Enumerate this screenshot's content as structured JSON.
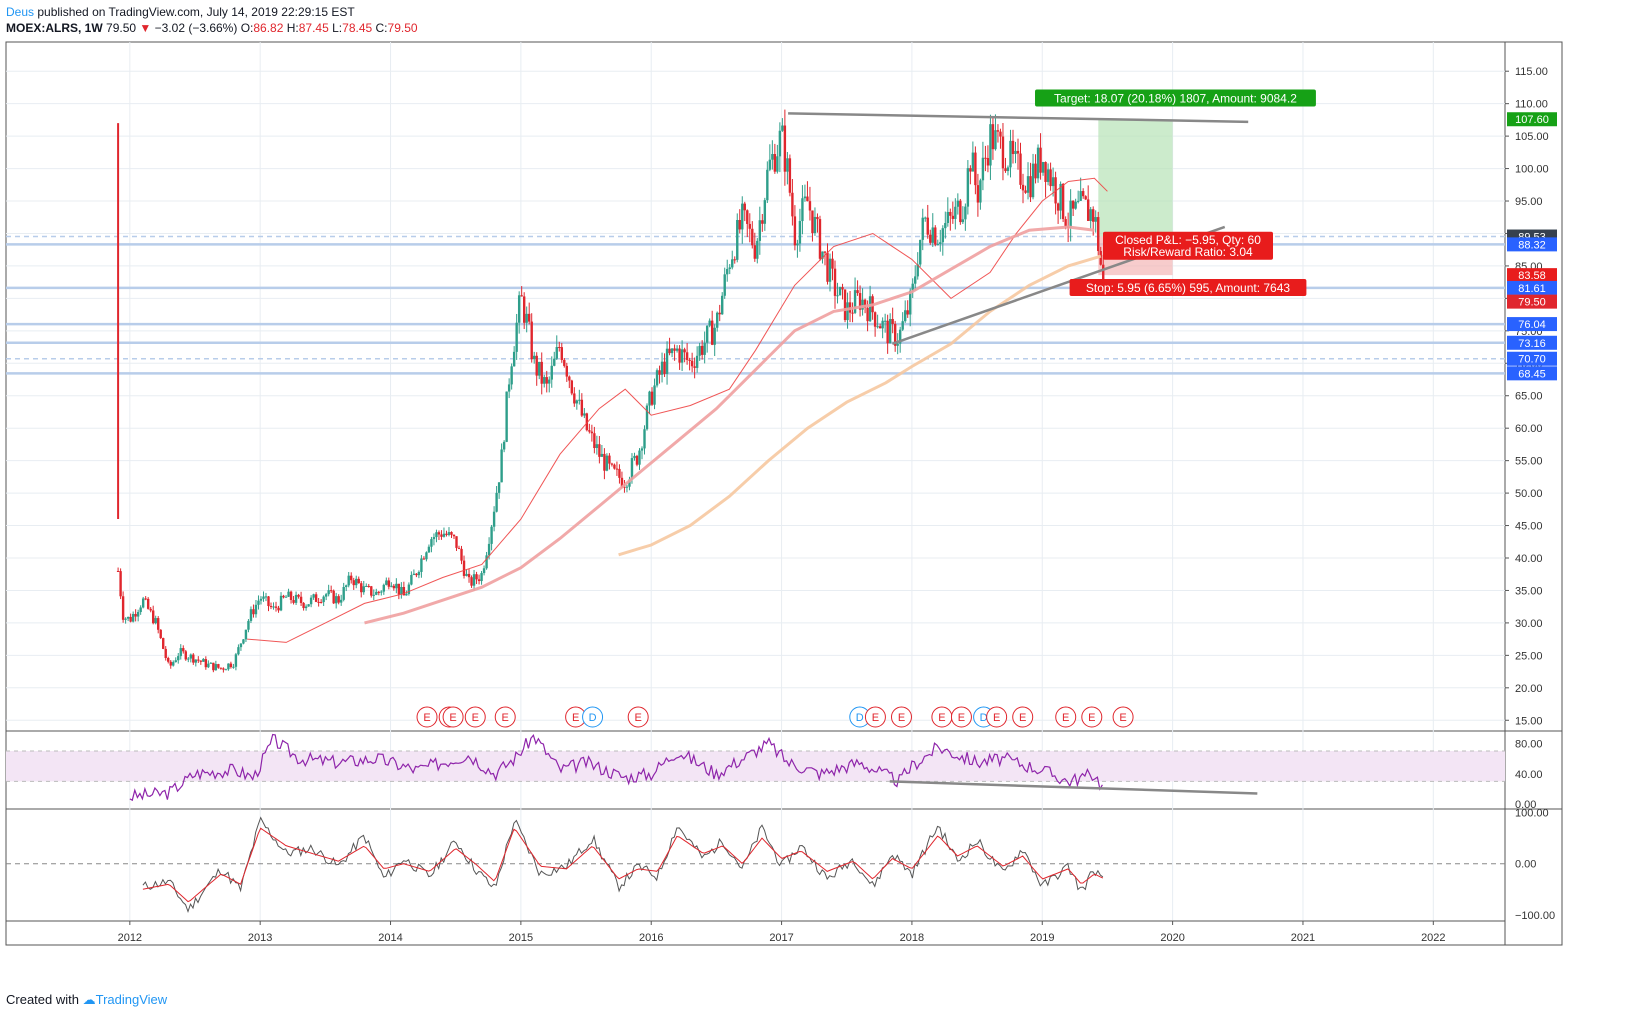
{
  "header": {
    "published_by": "Deus",
    "published_text": "published on TradingView.com, July 14, 2019 22:29:15 EST",
    "ticker": "MOEX:ALRS, 1W",
    "last": "79.50",
    "change": "−3.02 (−3.66%)",
    "o_label": "O:",
    "o_val": "86.82",
    "h_label": "H:",
    "h_val": "87.45",
    "l_label": "L:",
    "l_val": "78.45",
    "c_label": "C:",
    "c_val": "79.50"
  },
  "footer": {
    "created_with": "Created with",
    "brand": "TradingView"
  },
  "colors": {
    "up": "#2e9e8a",
    "down": "#e0262d",
    "ma_fast": "#ee4444",
    "ma_mid": "#f0a0a0",
    "ma_slow": "#f6c8a0",
    "rsi": "#8e24aa",
    "grid": "#e8edf2",
    "hline": "#b8cdea",
    "target": "#16a116",
    "stop": "#e81c1c"
  },
  "chart_data": [
    {
      "type": "candlestick",
      "title": "MOEX:ALRS, 1W",
      "x_ticks": [
        "2012",
        "2013",
        "2014",
        "2015",
        "2016",
        "2017",
        "2018",
        "2019",
        "2020",
        "2021",
        "2022"
      ],
      "x_tick_values": [
        2012,
        2013,
        2014,
        2015,
        2016,
        2017,
        2018,
        2019,
        2020,
        2021,
        2022
      ],
      "xlim": [
        2011.05,
        2022.55
      ],
      "y_ticks": [
        "115.00",
        "110.00",
        "105.00",
        "100.00",
        "95.00",
        "90.00",
        "85.00",
        "80.00",
        "75.00",
        "70.00",
        "65.00",
        "60.00",
        "55.00",
        "50.00",
        "45.00",
        "40.00",
        "35.00",
        "30.00",
        "25.00",
        "20.00",
        "15.00"
      ],
      "y_tick_values": [
        115,
        110,
        105,
        100,
        95,
        90,
        85,
        80,
        75,
        70,
        65,
        60,
        55,
        50,
        45,
        40,
        35,
        30,
        25,
        20,
        15
      ],
      "ylim": [
        13.5,
        119.5
      ],
      "close_series": {
        "x": [
          2011.91,
          2011.95,
          2012.0,
          2012.1,
          2012.2,
          2012.3,
          2012.38,
          2012.5,
          2012.6,
          2012.7,
          2012.8,
          2012.92,
          2013.0,
          2013.1,
          2013.2,
          2013.35,
          2013.5,
          2013.6,
          2013.7,
          2013.8,
          2013.9,
          2014.0,
          2014.1,
          2014.2,
          2014.3,
          2014.4,
          2014.5,
          2014.6,
          2014.7,
          2014.78,
          2014.85,
          2014.92,
          2015.0,
          2015.05,
          2015.1,
          2015.2,
          2015.3,
          2015.4,
          2015.5,
          2015.6,
          2015.7,
          2015.8,
          2015.9,
          2016.0,
          2016.1,
          2016.2,
          2016.3,
          2016.4,
          2016.5,
          2016.6,
          2016.7,
          2016.8,
          2016.9,
          2017.0,
          2017.05,
          2017.1,
          2017.2,
          2017.3,
          2017.4,
          2017.5,
          2017.6,
          2017.7,
          2017.8,
          2017.9,
          2018.0,
          2018.05,
          2018.1,
          2018.2,
          2018.3,
          2018.4,
          2018.45,
          2018.5,
          2018.6,
          2018.7,
          2018.8,
          2018.9,
          2019.0,
          2019.1,
          2019.2,
          2019.3,
          2019.4,
          2019.45,
          2019.48
        ],
        "y": [
          38.0,
          31.0,
          30.5,
          33.5,
          30.0,
          23.0,
          25.5,
          24.5,
          23.5,
          23.0,
          24.0,
          31.0,
          34.0,
          32.0,
          34.0,
          33.0,
          34.5,
          33.5,
          37.0,
          35.0,
          34.5,
          37.0,
          34.0,
          38.0,
          43.0,
          44.0,
          42.5,
          36.0,
          37.5,
          46.0,
          55.0,
          70.0,
          80.0,
          76.0,
          70.0,
          66.0,
          73.0,
          66.0,
          60.0,
          56.0,
          53.0,
          52.0,
          56.0,
          65.0,
          70.0,
          72.0,
          70.0,
          73.0,
          76.0,
          86.0,
          92.0,
          88.0,
          100.0,
          105.0,
          99.0,
          90.0,
          95.0,
          88.0,
          82.0,
          78.0,
          80.0,
          78.0,
          75.0,
          74.0,
          80.0,
          88.0,
          92.0,
          90.0,
          92.0,
          95.0,
          102.0,
          96.0,
          105.0,
          103.0,
          100.0,
          98.0,
          102.0,
          97.0,
          92.0,
          94.0,
          93.0,
          85.0,
          79.5
        ]
      },
      "moving_averages": [
        {
          "x": [
            2012.9,
            2013.2,
            2013.5,
            2013.8,
            2014.1,
            2014.4,
            2014.7,
            2015.0,
            2015.3,
            2015.6,
            2015.8,
            2016.0,
            2016.3,
            2016.6,
            2016.8,
            2017.1,
            2017.4,
            2017.7,
            2018.0,
            2018.3,
            2018.6,
            2018.8,
            2019.0,
            2019.2,
            2019.4,
            2019.5
          ],
          "y": [
            27.5,
            27.0,
            30.0,
            33.0,
            34.5,
            37.0,
            39.0,
            46.0,
            56.0,
            63.0,
            66.0,
            62.0,
            63.5,
            66.0,
            72.0,
            82.0,
            88.0,
            90.0,
            86.0,
            80.0,
            84.0,
            90.0,
            95.0,
            98.0,
            98.5,
            96.5
          ]
        },
        {
          "x": [
            2013.8,
            2014.1,
            2014.4,
            2014.7,
            2015.0,
            2015.3,
            2015.6,
            2015.9,
            2016.2,
            2016.5,
            2016.8,
            2017.1,
            2017.4,
            2017.7,
            2018.0,
            2018.3,
            2018.6,
            2018.9,
            2019.2,
            2019.4
          ],
          "y": [
            30.0,
            31.5,
            33.5,
            35.5,
            38.5,
            43.0,
            48.0,
            53.0,
            58.0,
            63.0,
            69.0,
            75.0,
            78.0,
            79.0,
            81.0,
            84.5,
            88.0,
            90.5,
            91.0,
            90.5
          ]
        },
        {
          "x": [
            2015.75,
            2016.0,
            2016.3,
            2016.6,
            2016.9,
            2017.2,
            2017.5,
            2017.8,
            2018.0,
            2018.3,
            2018.6,
            2018.9,
            2019.2,
            2019.45
          ],
          "y": [
            40.5,
            42.0,
            45.0,
            49.5,
            55.0,
            60.0,
            64.0,
            67.0,
            69.5,
            73.0,
            78.0,
            82.0,
            85.0,
            86.5
          ]
        }
      ],
      "trendlines": [
        {
          "x": [
            2017.05,
            2020.58
          ],
          "y": [
            108.5,
            107.2
          ]
        },
        {
          "x": [
            2017.85,
            2020.4
          ],
          "y": [
            73.0,
            91.0
          ]
        }
      ],
      "price_lines": [
        89.53,
        88.32,
        81.61,
        76.04,
        73.16,
        70.7,
        68.45
      ],
      "price_labels": [
        {
          "text": "107.60",
          "value": 107.6,
          "color": "#16a116"
        },
        {
          "text": "89.53",
          "value": 89.53,
          "color": "#37414f"
        },
        {
          "text": "88.32",
          "value": 88.32,
          "color": "#2962ff"
        },
        {
          "text": "83.58",
          "value": 83.58,
          "color": "#e81c1c"
        },
        {
          "text": "81.61",
          "value": 81.61,
          "color": "#2962ff"
        },
        {
          "text": "79.50",
          "value": 79.5,
          "color": "#e0262d"
        },
        {
          "text": "76.04",
          "value": 76.04,
          "color": "#2962ff"
        },
        {
          "text": "73.16",
          "value": 73.16,
          "color": "#2962ff"
        },
        {
          "text": "70.70",
          "value": 70.7,
          "color": "#2962ff"
        },
        {
          "text": "68.45",
          "value": 68.45,
          "color": "#2962ff"
        }
      ],
      "position": {
        "x_start": 2019.43,
        "x_end": 2020.0,
        "entry": 89.53,
        "target": 107.6,
        "stop": 83.58,
        "target_label": "Target: 18.07 (20.18%) 1807, Amount: 9084.2",
        "pl_label_1": "Closed P&L: −5.95, Qty: 60",
        "pl_label_2": "Risk/Reward Ratio: 3.04",
        "stop_label": "Stop: 5.95 (6.65%) 595, Amount: 7643"
      },
      "events": [
        {
          "x": 2014.28,
          "t": "E"
        },
        {
          "x": 2014.45,
          "t": "E"
        },
        {
          "x": 2014.48,
          "t": "E"
        },
        {
          "x": 2014.65,
          "t": "E"
        },
        {
          "x": 2014.88,
          "t": "E"
        },
        {
          "x": 2015.42,
          "t": "E"
        },
        {
          "x": 2015.55,
          "t": "D"
        },
        {
          "x": 2015.9,
          "t": "E"
        },
        {
          "x": 2017.6,
          "t": "D"
        },
        {
          "x": 2017.72,
          "t": "E"
        },
        {
          "x": 2017.92,
          "t": "E"
        },
        {
          "x": 2018.23,
          "t": "E"
        },
        {
          "x": 2018.38,
          "t": "E"
        },
        {
          "x": 2018.55,
          "t": "D"
        },
        {
          "x": 2018.65,
          "t": "E"
        },
        {
          "x": 2018.85,
          "t": "E"
        },
        {
          "x": 2019.18,
          "t": "E"
        },
        {
          "x": 2019.38,
          "t": "E"
        },
        {
          "x": 2019.62,
          "t": "E"
        }
      ]
    },
    {
      "type": "line",
      "series_label": "RSI",
      "y_ticks": [
        "80.00",
        "40.00",
        "0.00"
      ],
      "y_tick_values": [
        80,
        40,
        0
      ],
      "ylim": [
        -5,
        95
      ],
      "band": [
        30,
        70
      ],
      "x": [
        2012.0,
        2012.3,
        2012.5,
        2012.8,
        2012.95,
        2013.1,
        2013.3,
        2013.6,
        2013.9,
        2014.2,
        2014.4,
        2014.6,
        2014.8,
        2014.95,
        2015.1,
        2015.3,
        2015.5,
        2015.8,
        2016.0,
        2016.2,
        2016.5,
        2016.7,
        2016.9,
        2017.05,
        2017.3,
        2017.6,
        2017.9,
        2018.0,
        2018.2,
        2018.5,
        2018.7,
        2019.0,
        2019.2,
        2019.4,
        2019.47
      ],
      "y": [
        10,
        15,
        40,
        45,
        35,
        85,
        60,
        55,
        60,
        45,
        55,
        65,
        40,
        60,
        90,
        45,
        55,
        35,
        40,
        70,
        40,
        60,
        80,
        55,
        40,
        55,
        30,
        50,
        75,
        55,
        60,
        45,
        30,
        40,
        20
      ],
      "trendline": {
        "x": [
          2017.83,
          2020.65
        ],
        "y": [
          30,
          14
        ]
      }
    },
    {
      "type": "line",
      "series_label": "Oscillator",
      "y_ticks": [
        "100.00",
        "0.00",
        "−100.00"
      ],
      "y_tick_values": [
        100,
        0,
        -100
      ],
      "ylim": [
        -110,
        105
      ],
      "series": [
        {
          "name": "",
          "x": [
            2012.1,
            2012.3,
            2012.45,
            2012.7,
            2012.85,
            2013.0,
            2013.2,
            2013.4,
            2013.6,
            2013.8,
            2013.95,
            2014.1,
            2014.3,
            2014.5,
            2014.65,
            2014.8,
            2014.95,
            2015.15,
            2015.35,
            2015.55,
            2015.75,
            2015.9,
            2016.05,
            2016.2,
            2016.4,
            2016.55,
            2016.7,
            2016.85,
            2017.0,
            2017.15,
            2017.35,
            2017.55,
            2017.7,
            2017.85,
            2018.0,
            2018.2,
            2018.35,
            2018.5,
            2018.7,
            2018.85,
            2019.0,
            2019.2,
            2019.3,
            2019.4,
            2019.48
          ],
          "y": [
            -45,
            -35,
            -90,
            -10,
            -50,
            85,
            20,
            30,
            -5,
            55,
            -30,
            10,
            -25,
            45,
            -10,
            -50,
            85,
            -20,
            -5,
            50,
            -45,
            -5,
            -25,
            75,
            10,
            45,
            -10,
            70,
            -5,
            35,
            -30,
            10,
            -45,
            20,
            -20,
            75,
            5,
            45,
            -20,
            30,
            -45,
            -5,
            -55,
            -10,
            -40
          ]
        },
        {
          "name": "",
          "x": [
            2012.1,
            2012.3,
            2012.45,
            2012.7,
            2012.85,
            2013.0,
            2013.2,
            2013.4,
            2013.6,
            2013.8,
            2013.95,
            2014.1,
            2014.3,
            2014.5,
            2014.65,
            2014.8,
            2014.95,
            2015.15,
            2015.35,
            2015.55,
            2015.75,
            2015.9,
            2016.05,
            2016.2,
            2016.4,
            2016.55,
            2016.7,
            2016.85,
            2017.0,
            2017.15,
            2017.35,
            2017.55,
            2017.7,
            2017.85,
            2018.0,
            2018.2,
            2018.35,
            2018.5,
            2018.7,
            2018.85,
            2019.0,
            2019.2,
            2019.3,
            2019.4,
            2019.48
          ],
          "y": [
            -50,
            -40,
            -75,
            -20,
            -40,
            70,
            35,
            20,
            5,
            35,
            -10,
            0,
            -15,
            30,
            0,
            -35,
            70,
            -5,
            -10,
            35,
            -30,
            -10,
            -15,
            55,
            20,
            35,
            0,
            50,
            10,
            25,
            -15,
            5,
            -30,
            10,
            -10,
            55,
            15,
            35,
            -5,
            15,
            -30,
            -10,
            -40,
            -20,
            -30
          ]
        }
      ]
    }
  ]
}
